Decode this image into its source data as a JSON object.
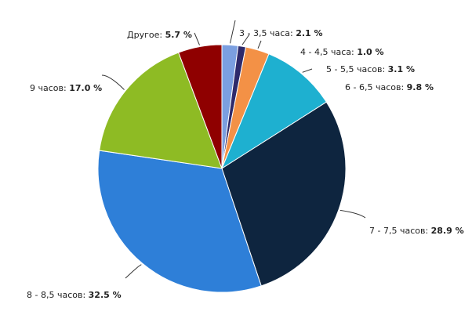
{
  "chart_data": {
    "type": "pie",
    "slices": [
      {
        "label": "3 - 3,5 часа",
        "value": 2.1,
        "value_label": "2.1 %",
        "color": "#7b9fe0"
      },
      {
        "label": "4 - 4,5 часа",
        "value": 1.0,
        "value_label": "1.0 %",
        "color": "#2e2a6b"
      },
      {
        "label": "5 - 5,5 часов",
        "value": 3.1,
        "value_label": "3.1 %",
        "color": "#f39146"
      },
      {
        "label": "6 - 6,5 часов",
        "value": 9.8,
        "value_label": "9.8 %",
        "color": "#1eb0d0"
      },
      {
        "label": "7 - 7,5 часов",
        "value": 28.9,
        "value_label": "28.9 %",
        "color": "#0e253f"
      },
      {
        "label": "8 - 8,5 часов",
        "value": 32.5,
        "value_label": "32.5 %",
        "color": "#2e7fd8"
      },
      {
        "label": "9 часов",
        "value": 17.0,
        "value_label": "17.0 %",
        "color": "#8ebb24"
      },
      {
        "label": "Другое",
        "value": 5.7,
        "value_label": "5.7 %",
        "color": "#8f0000"
      }
    ],
    "start_position": "top",
    "direction": "clockwise"
  }
}
